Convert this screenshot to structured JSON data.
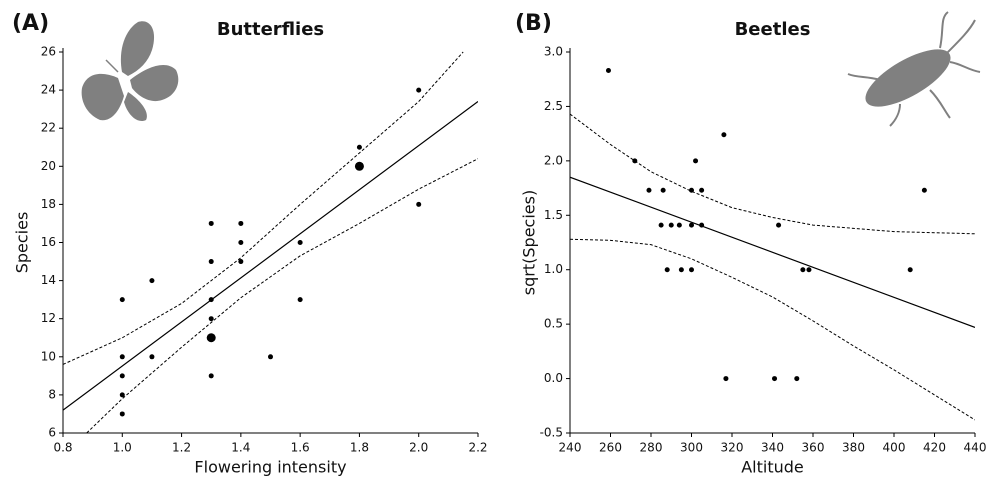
{
  "chart_data": [
    {
      "type": "scatter",
      "panel_label": "(A)",
      "title": "Butterflies",
      "xlabel": "Flowering intensity",
      "ylabel": "Species",
      "color": "#000000",
      "xlim": [
        0.8,
        2.2
      ],
      "ylim": [
        6,
        26
      ],
      "xticks": [
        0.8,
        {
          "value": 1,
          "label": "1.0"
        },
        1.2,
        1.4,
        1.6,
        1.8,
        {
          "value": 2,
          "label": "2.0"
        },
        2.2
      ],
      "yticks": [
        6,
        8,
        10,
        12,
        14,
        16,
        18,
        20,
        22,
        24,
        26
      ],
      "x": [
        1.0,
        1.0,
        1.0,
        1.0,
        1.0,
        1.1,
        1.1,
        1.3,
        1.3,
        1.3,
        1.3,
        1.3,
        1.3,
        1.4,
        1.4,
        1.4,
        1.5,
        1.6,
        1.6,
        1.8,
        1.8,
        2.0,
        2.0
      ],
      "y": [
        13,
        10,
        9,
        8,
        7,
        14,
        10,
        17,
        15,
        13,
        12,
        11,
        9,
        17,
        16,
        15,
        10,
        16,
        13,
        21,
        20,
        24,
        18
      ],
      "sizes": [
        1,
        1,
        1,
        1,
        1,
        1,
        1,
        1,
        1,
        1,
        1,
        2,
        1,
        1,
        1,
        1,
        1,
        1,
        1,
        1,
        2,
        1,
        1
      ],
      "fit": {
        "x": [
          0.8,
          2.2
        ],
        "y": [
          7.2,
          23.4
        ]
      },
      "band_upper": {
        "x": [
          0.8,
          1.0,
          1.2,
          1.4,
          1.6,
          1.8,
          2.0,
          2.15
        ],
        "y": [
          9.6,
          11.0,
          12.8,
          15.2,
          18.0,
          20.7,
          23.4,
          26
        ]
      },
      "band_lower": {
        "x": [
          0.88,
          1.0,
          1.2,
          1.4,
          1.6,
          1.8,
          2.0,
          2.2
        ],
        "y": [
          6,
          7.8,
          10.5,
          13.1,
          15.3,
          17.0,
          18.8,
          20.4
        ]
      }
    },
    {
      "type": "scatter",
      "panel_label": "(B)",
      "title": "Beetles",
      "xlabel": "Altitude",
      "ylabel": "sqrt(Species)",
      "color": "#000000",
      "xlim": [
        240,
        440
      ],
      "ylim": [
        -0.5,
        3
      ],
      "xticks": [
        240,
        260,
        280,
        300,
        320,
        340,
        360,
        380,
        400,
        420,
        440
      ],
      "yticks": [
        -0.5,
        {
          "value": 0,
          "label": "0.0"
        },
        0.5,
        {
          "value": 1,
          "label": "1.0"
        },
        1.5,
        {
          "value": 2,
          "label": "2.0"
        },
        2.5,
        {
          "value": 3,
          "label": "3.0"
        }
      ],
      "x": [
        259,
        272,
        279,
        286,
        285,
        290,
        294,
        300,
        305,
        300,
        305,
        302,
        316,
        288,
        295,
        300,
        317,
        341,
        352,
        343,
        355,
        358,
        408,
        415
      ],
      "y": [
        2.83,
        2.0,
        1.73,
        1.73,
        1.41,
        1.41,
        1.41,
        1.41,
        1.41,
        1.73,
        1.73,
        2.0,
        2.24,
        1.0,
        1.0,
        1.0,
        0,
        0,
        0,
        1.41,
        1.0,
        1.0,
        1.0,
        1.73
      ],
      "fit": {
        "x": [
          240,
          440
        ],
        "y": [
          1.85,
          0.47
        ]
      },
      "band_upper": {
        "x": [
          240,
          260,
          280,
          300,
          320,
          340,
          360,
          380,
          400,
          440
        ],
        "y": [
          2.43,
          2.15,
          1.9,
          1.72,
          1.57,
          1.48,
          1.41,
          1.38,
          1.35,
          1.33
        ]
      },
      "band_lower": {
        "x": [
          240,
          260,
          280,
          300,
          320,
          340,
          360,
          380,
          400,
          420,
          440
        ],
        "y": [
          1.28,
          1.27,
          1.23,
          1.1,
          0.93,
          0.75,
          0.53,
          0.3,
          0.08,
          -0.15,
          -0.38
        ]
      }
    }
  ]
}
